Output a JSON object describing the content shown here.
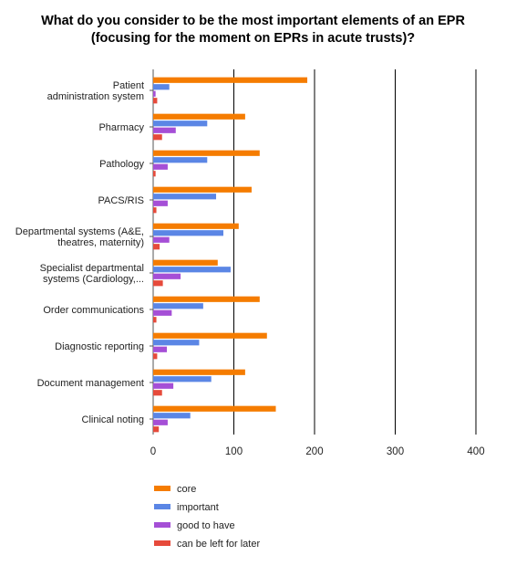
{
  "chart_data": {
    "type": "bar",
    "orientation": "horizontal",
    "title_lines": [
      "What do you consider to be the most important elements of an EPR",
      "(focusing for the moment on EPRs in acute trusts)?"
    ],
    "categories": [
      [
        "Patient",
        "administration system"
      ],
      [
        "Pharmacy"
      ],
      [
        "Pathology"
      ],
      [
        "PACS/RIS"
      ],
      [
        "Departmental systems (A&E,",
        "theatres, maternity)"
      ],
      [
        "Specialist departmental",
        "systems (Cardiology,..."
      ],
      [
        "Order communications"
      ],
      [
        "Diagnostic reporting"
      ],
      [
        "Document management"
      ],
      [
        "Clinical noting"
      ]
    ],
    "series": [
      {
        "name": "core",
        "color": "#f57c00",
        "values": [
          191,
          114,
          132,
          122,
          106,
          80,
          132,
          141,
          114,
          152
        ]
      },
      {
        "name": "important",
        "color": "#5b86e5",
        "values": [
          20,
          67,
          67,
          78,
          87,
          96,
          62,
          57,
          72,
          46
        ]
      },
      {
        "name": "good to have",
        "color": "#a54fd6",
        "values": [
          3,
          28,
          18,
          18,
          20,
          34,
          23,
          17,
          25,
          18
        ]
      },
      {
        "name": "can be left for later",
        "color": "#e64a3b",
        "values": [
          5,
          11,
          3,
          4,
          8,
          12,
          4,
          5,
          11,
          7
        ]
      }
    ],
    "xlim": [
      0,
      400
    ],
    "xticks": [
      "0",
      "100",
      "200",
      "300",
      "400"
    ],
    "grid": true,
    "legend_position": "bottom-left"
  }
}
